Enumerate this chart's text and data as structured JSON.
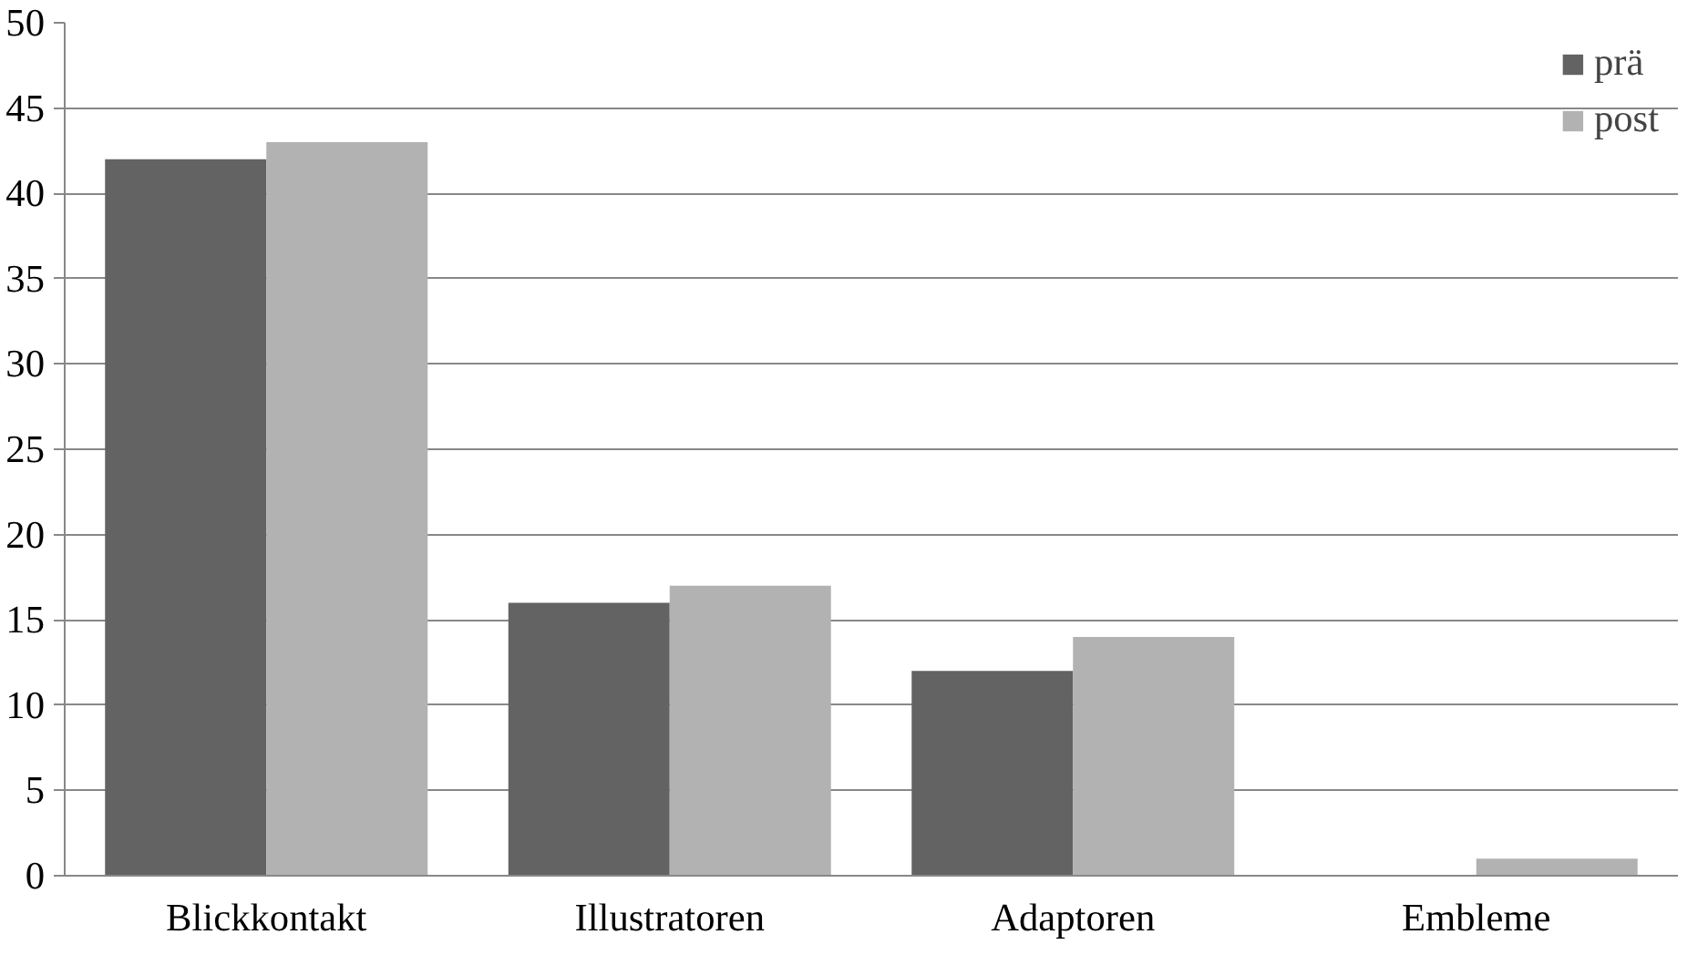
{
  "chart_data": {
    "type": "bar",
    "categories": [
      "Blickkontakt",
      "Illustratoren",
      "Adaptoren",
      "Embleme"
    ],
    "series": [
      {
        "name": "prä",
        "color": "#636363",
        "values": [
          42,
          16,
          12,
          0
        ]
      },
      {
        "name": "post",
        "color": "#b2b2b2",
        "values": [
          43,
          17,
          14,
          1
        ]
      }
    ],
    "ylim": [
      0,
      50
    ],
    "yticks": [
      0,
      5,
      10,
      15,
      20,
      25,
      30,
      35,
      40,
      45,
      50
    ],
    "grid": "y",
    "legend": "top right"
  }
}
